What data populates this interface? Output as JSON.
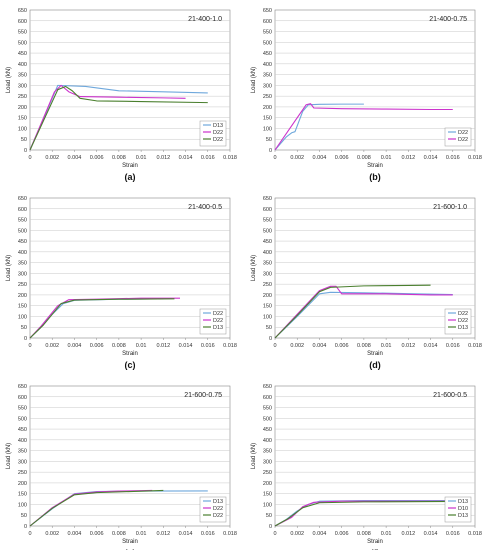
{
  "chart_data": [
    {
      "type": "line",
      "title": "21-400-1.0",
      "caption": "(a)",
      "xlabel": "Strain",
      "ylabel": "Load (kN)",
      "xlim": [
        0,
        0.018
      ],
      "ylim": [
        0,
        650
      ],
      "grid": true,
      "legend": "bottom-right",
      "xticks": [
        "0",
        "0.002",
        "0.004",
        "0.006",
        "0.008",
        "0.01",
        "0.012",
        "0.014",
        "0.016",
        "0.018"
      ],
      "yticks": [
        "0",
        "50",
        "100",
        "150",
        "200",
        "250",
        "300",
        "350",
        "400",
        "450",
        "500",
        "550",
        "600",
        "650"
      ],
      "series": [
        {
          "name": "D13",
          "color": "#6fa8dc",
          "points": [
            [
              0,
              0
            ],
            [
              0.0025,
              300
            ],
            [
              0.005,
              295
            ],
            [
              0.008,
              275
            ],
            [
              0.012,
              270
            ],
            [
              0.016,
              265
            ]
          ]
        },
        {
          "name": "D22",
          "color": "#cc33cc",
          "points": [
            [
              0,
              0
            ],
            [
              0.0022,
              270
            ],
            [
              0.0028,
              300
            ],
            [
              0.0035,
              270
            ],
            [
              0.0045,
              248
            ],
            [
              0.008,
              245
            ],
            [
              0.012,
              242
            ],
            [
              0.014,
              240
            ]
          ]
        },
        {
          "name": "D22",
          "color": "#4a7f2e",
          "points": [
            [
              0,
              0
            ],
            [
              0.0025,
              280
            ],
            [
              0.0032,
              295
            ],
            [
              0.0038,
              275
            ],
            [
              0.0045,
              240
            ],
            [
              0.006,
              228
            ],
            [
              0.01,
              225
            ],
            [
              0.016,
              220
            ]
          ]
        }
      ]
    },
    {
      "type": "line",
      "title": "21-400-0.75",
      "caption": "(b)",
      "xlabel": "Strain",
      "ylabel": "Load (kN)",
      "xlim": [
        0,
        0.018
      ],
      "ylim": [
        0,
        650
      ],
      "grid": true,
      "legend": "bottom-right",
      "xticks": [
        "0",
        "0.002",
        "0.004",
        "0.006",
        "0.008",
        "0.01",
        "0.012",
        "0.014",
        "0.016",
        "0.018"
      ],
      "yticks": [
        "0",
        "50",
        "100",
        "150",
        "200",
        "250",
        "300",
        "350",
        "400",
        "450",
        "500",
        "550",
        "600",
        "650"
      ],
      "series": [
        {
          "name": "D22",
          "color": "#6fa8dc",
          "points": [
            [
              0,
              0
            ],
            [
              0.001,
              60
            ],
            [
              0.0015,
              80
            ],
            [
              0.0018,
              85
            ],
            [
              0.0025,
              180
            ],
            [
              0.003,
              210
            ],
            [
              0.004,
              212
            ],
            [
              0.006,
              213
            ],
            [
              0.008,
              213
            ]
          ]
        },
        {
          "name": "D22",
          "color": "#cc33cc",
          "points": [
            [
              0,
              0
            ],
            [
              0.0028,
              210
            ],
            [
              0.0032,
              215
            ],
            [
              0.0035,
              195
            ],
            [
              0.006,
              192
            ],
            [
              0.01,
              190
            ],
            [
              0.014,
              188
            ],
            [
              0.016,
              188
            ]
          ]
        }
      ]
    },
    {
      "type": "line",
      "title": "21-400-0.5",
      "caption": "(c)",
      "xlabel": "Strain",
      "ylabel": "Load (kN)",
      "xlim": [
        0,
        0.018
      ],
      "ylim": [
        0,
        650
      ],
      "grid": true,
      "legend": "bottom-right",
      "xticks": [
        "0",
        "0.002",
        "0.004",
        "0.006",
        "0.008",
        "0.01",
        "0.012",
        "0.014",
        "0.016",
        "0.018"
      ],
      "yticks": [
        "0",
        "50",
        "100",
        "150",
        "200",
        "250",
        "300",
        "350",
        "400",
        "450",
        "500",
        "550",
        "600",
        "650"
      ],
      "series": [
        {
          "name": "D22",
          "color": "#6fa8dc",
          "points": [
            [
              0,
              0
            ],
            [
              0.001,
              50
            ],
            [
              0.002,
              110
            ],
            [
              0.003,
              160
            ],
            [
              0.004,
              175
            ],
            [
              0.008,
              180
            ],
            [
              0.012,
              182
            ]
          ]
        },
        {
          "name": "D22",
          "color": "#cc33cc",
          "points": [
            [
              0,
              0
            ],
            [
              0.001,
              55
            ],
            [
              0.0025,
              150
            ],
            [
              0.0035,
              178
            ],
            [
              0.006,
              180
            ],
            [
              0.01,
              185
            ],
            [
              0.0135,
              185
            ]
          ]
        },
        {
          "name": "D13",
          "color": "#4a7f2e",
          "points": [
            [
              0,
              0
            ],
            [
              0.0012,
              60
            ],
            [
              0.0028,
              160
            ],
            [
              0.004,
              176
            ],
            [
              0.008,
              180
            ],
            [
              0.013,
              182
            ]
          ]
        }
      ]
    },
    {
      "type": "line",
      "title": "21-600-1.0",
      "caption": "(d)",
      "xlabel": "Strain",
      "ylabel": "Load (kN)",
      "xlim": [
        0,
        0.018
      ],
      "ylim": [
        0,
        650
      ],
      "grid": true,
      "legend": "bottom-right",
      "xticks": [
        "0",
        "0.002",
        "0.004",
        "0.006",
        "0.008",
        "0.01",
        "0.012",
        "0.014",
        "0.016",
        "0.018"
      ],
      "yticks": [
        "0",
        "50",
        "100",
        "150",
        "200",
        "250",
        "300",
        "350",
        "400",
        "450",
        "500",
        "550",
        "600",
        "650"
      ],
      "series": [
        {
          "name": "D22",
          "color": "#6fa8dc",
          "points": [
            [
              0,
              0
            ],
            [
              0.002,
              100
            ],
            [
              0.004,
              205
            ],
            [
              0.005,
              212
            ],
            [
              0.008,
              210
            ],
            [
              0.012,
              206
            ],
            [
              0.016,
              202
            ]
          ]
        },
        {
          "name": "D22",
          "color": "#cc33cc",
          "points": [
            [
              0,
              0
            ],
            [
              0.002,
              110
            ],
            [
              0.004,
              220
            ],
            [
              0.005,
              240
            ],
            [
              0.0055,
              240
            ],
            [
              0.006,
              205
            ],
            [
              0.01,
              205
            ],
            [
              0.014,
              200
            ],
            [
              0.016,
              200
            ]
          ]
        },
        {
          "name": "D13",
          "color": "#4a7f2e",
          "points": [
            [
              0,
              0
            ],
            [
              0.002,
              105
            ],
            [
              0.004,
              215
            ],
            [
              0.005,
              235
            ],
            [
              0.008,
              242
            ],
            [
              0.012,
              244
            ],
            [
              0.014,
              245
            ]
          ]
        }
      ]
    },
    {
      "type": "line",
      "title": "21-600-0.75",
      "caption": "(e)",
      "xlabel": "Strain",
      "ylabel": "Load (kN)",
      "xlim": [
        0,
        0.018
      ],
      "ylim": [
        0,
        650
      ],
      "grid": true,
      "legend": "bottom-right",
      "xticks": [
        "0",
        "0.002",
        "0.004",
        "0.006",
        "0.008",
        "0.01",
        "0.012",
        "0.014",
        "0.016",
        "0.018"
      ],
      "yticks": [
        "0",
        "50",
        "100",
        "150",
        "200",
        "250",
        "300",
        "350",
        "400",
        "450",
        "500",
        "550",
        "600",
        "650"
      ],
      "series": [
        {
          "name": "D13",
          "color": "#6fa8dc",
          "points": [
            [
              0,
              0
            ],
            [
              0.002,
              80
            ],
            [
              0.004,
              150
            ],
            [
              0.006,
              160
            ],
            [
              0.01,
              162
            ],
            [
              0.016,
              163
            ]
          ]
        },
        {
          "name": "D22",
          "color": "#cc33cc",
          "points": [
            [
              0,
              0
            ],
            [
              0.002,
              85
            ],
            [
              0.004,
              148
            ],
            [
              0.006,
              158
            ],
            [
              0.008,
              162
            ],
            [
              0.011,
              165
            ]
          ]
        },
        {
          "name": "D22",
          "color": "#4a7f2e",
          "points": [
            [
              0,
              0
            ],
            [
              0.002,
              82
            ],
            [
              0.004,
              145
            ],
            [
              0.006,
              155
            ],
            [
              0.009,
              160
            ],
            [
              0.012,
              165
            ]
          ]
        }
      ]
    },
    {
      "type": "line",
      "title": "21-600-0.5",
      "caption": "(f)",
      "xlabel": "Strain",
      "ylabel": "Load (kN)",
      "xlim": [
        0,
        0.018
      ],
      "ylim": [
        0,
        650
      ],
      "grid": true,
      "legend": "bottom-right",
      "xticks": [
        "0",
        "0.002",
        "0.004",
        "0.006",
        "0.008",
        "0.01",
        "0.012",
        "0.014",
        "0.016",
        "0.018"
      ],
      "yticks": [
        "0",
        "50",
        "100",
        "150",
        "200",
        "250",
        "300",
        "350",
        "400",
        "450",
        "500",
        "550",
        "600",
        "650"
      ],
      "series": [
        {
          "name": "D13",
          "color": "#6fa8dc",
          "points": [
            [
              0,
              0
            ],
            [
              0.001,
              30
            ],
            [
              0.002,
              70
            ],
            [
              0.003,
              100
            ],
            [
              0.004,
              115
            ],
            [
              0.008,
              118
            ],
            [
              0.012,
              118
            ],
            [
              0.016,
              118
            ]
          ]
        },
        {
          "name": "D10",
          "color": "#cc33cc",
          "points": [
            [
              0,
              0
            ],
            [
              0.0015,
              40
            ],
            [
              0.0025,
              90
            ],
            [
              0.0035,
              110
            ],
            [
              0.006,
              115
            ],
            [
              0.01,
              115
            ],
            [
              0.016,
              115
            ]
          ]
        },
        {
          "name": "D13",
          "color": "#4a7f2e",
          "points": [
            [
              0,
              0
            ],
            [
              0.0012,
              35
            ],
            [
              0.0025,
              85
            ],
            [
              0.004,
              108
            ],
            [
              0.008,
              112
            ],
            [
              0.012,
              113
            ],
            [
              0.016,
              114
            ]
          ]
        }
      ]
    }
  ]
}
